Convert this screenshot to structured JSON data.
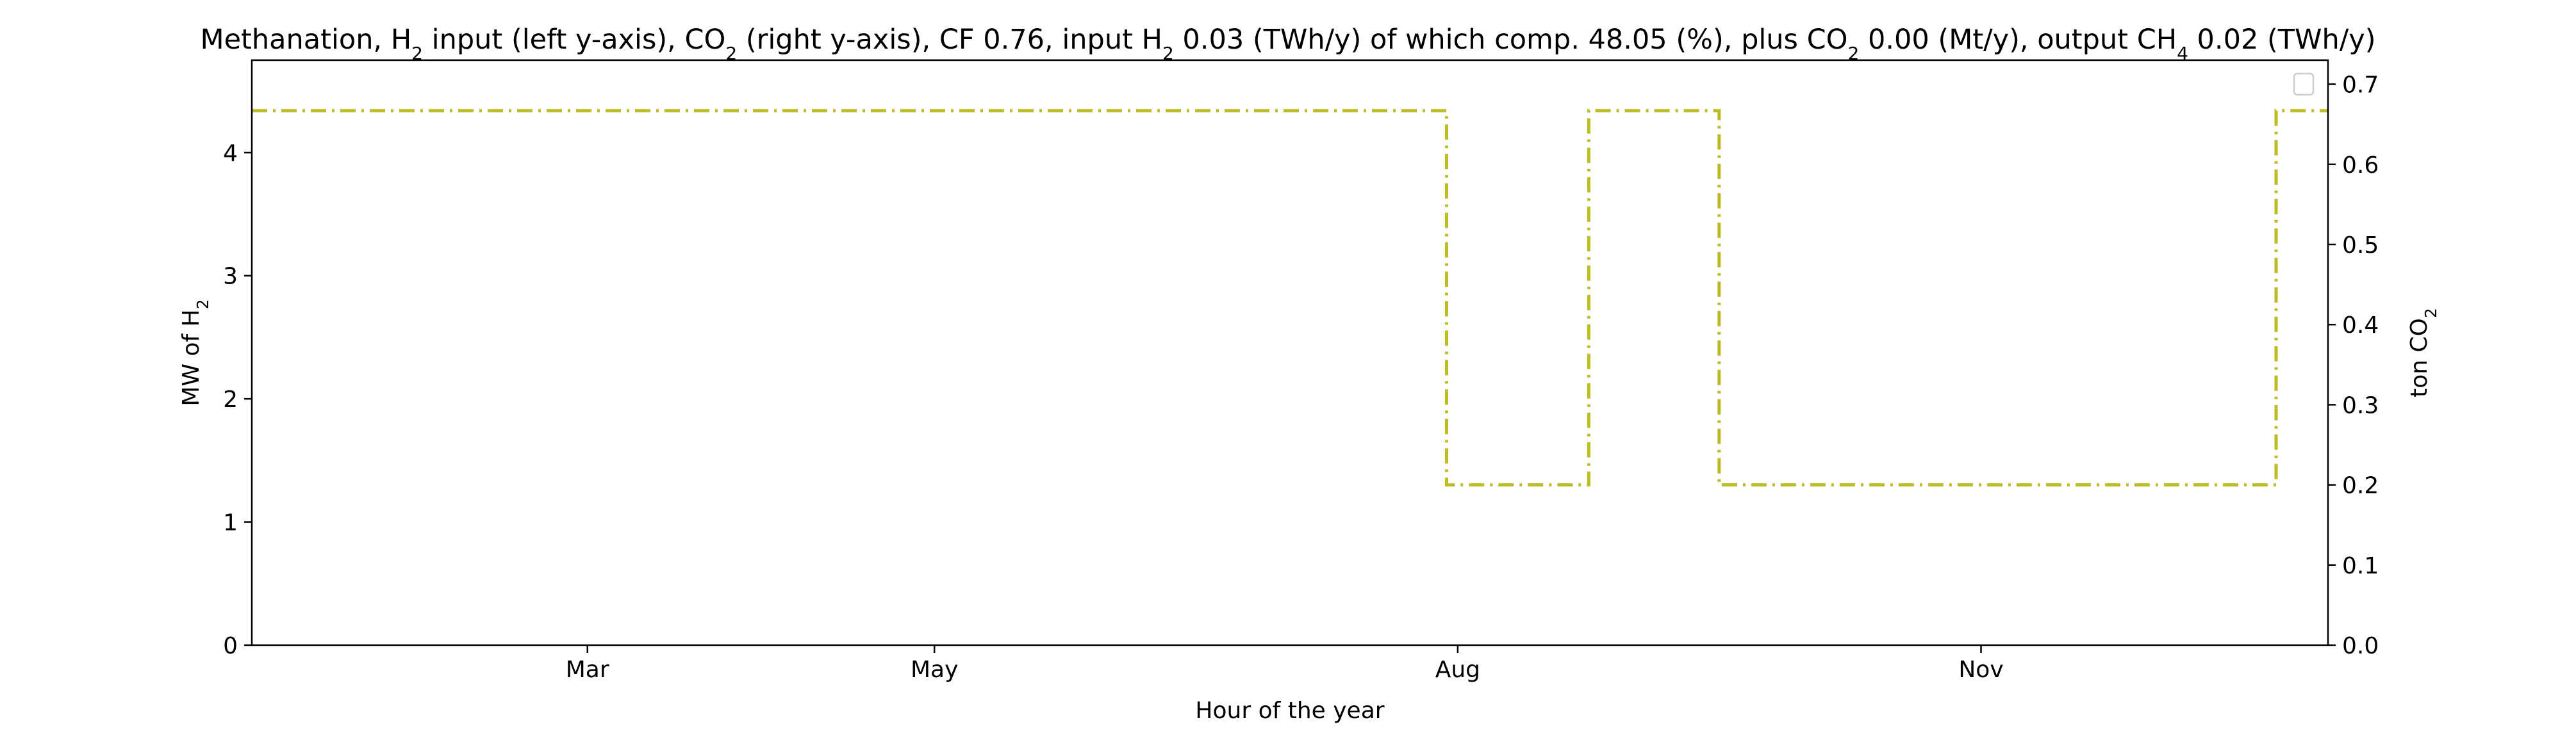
{
  "chart_data": {
    "type": "line",
    "title": {
      "parts": [
        {
          "t": "Methanation, H"
        },
        {
          "t": "2",
          "sub": true
        },
        {
          "t": " input (left y-axis), CO"
        },
        {
          "t": "2",
          "sub": true
        },
        {
          "t": " (right y-axis), CF 0.76, input H"
        },
        {
          "t": "2",
          "sub": true
        },
        {
          "t": " 0.03 (TWh/y) of which comp. 48.05 (%), plus CO"
        },
        {
          "t": "2",
          "sub": true
        },
        {
          "t": " 0.00 (Mt/y), output CH"
        },
        {
          "t": "4",
          "sub": true
        },
        {
          "t": " 0.02 (TWh/y)"
        }
      ]
    },
    "xlabel": "Hour of the year",
    "ylabel_left": {
      "parts": [
        {
          "t": "MW of H"
        },
        {
          "t": "2",
          "sub": true
        }
      ]
    },
    "ylabel_right": {
      "parts": [
        {
          "t": "ton CO"
        },
        {
          "t": "2",
          "sub": true
        }
      ]
    },
    "x_axis": {
      "unit": "hour",
      "range": [
        0,
        8760
      ],
      "ticks": [
        {
          "hour": 1416,
          "label": "Mar"
        },
        {
          "hour": 2880,
          "label": "May"
        },
        {
          "hour": 5088,
          "label": "Aug"
        },
        {
          "hour": 7296,
          "label": "Nov"
        }
      ]
    },
    "y_left": {
      "range": [
        0,
        4.75
      ],
      "ticks": [
        0,
        1,
        2,
        3,
        4
      ]
    },
    "y_right": {
      "range": [
        0,
        0.73
      ],
      "ticks": [
        "0.0",
        "0.1",
        "0.2",
        "0.3",
        "0.4",
        "0.5",
        "0.6",
        "0.7"
      ]
    },
    "grid": false,
    "legend": {
      "placement": "upper-right",
      "entries": []
    },
    "series": [
      {
        "axis": "right",
        "color": "#bcbd22",
        "linestyle": "dashdot",
        "drawstyle": "steps",
        "points": [
          [
            0,
            0.667
          ],
          [
            5040,
            0.667
          ],
          [
            5041,
            0.2
          ],
          [
            5640,
            0.2
          ],
          [
            5641,
            0.667
          ],
          [
            6190,
            0.667
          ],
          [
            6191,
            0.2
          ],
          [
            8540,
            0.2
          ],
          [
            8541,
            0.667
          ],
          [
            8760,
            0.667
          ]
        ]
      }
    ]
  }
}
